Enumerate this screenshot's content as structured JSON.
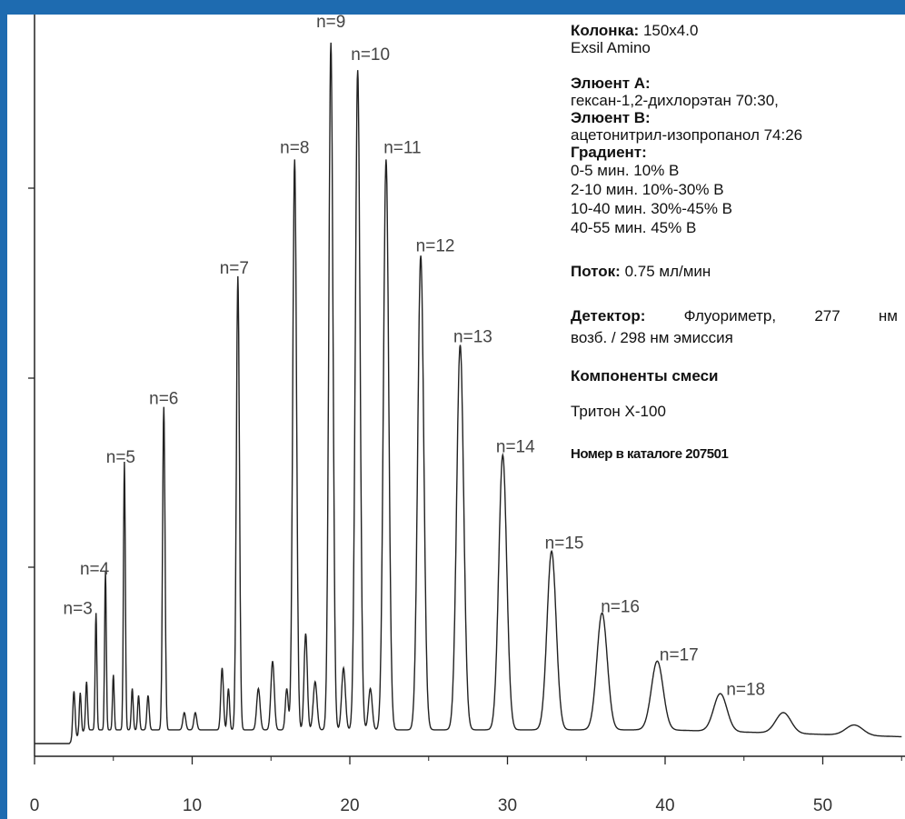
{
  "chart_data": {
    "type": "line",
    "x_axis": {
      "ticks": [
        0,
        10,
        20,
        30,
        40,
        50
      ],
      "range": [
        0,
        55
      ]
    },
    "y_axis": {
      "labels": "none",
      "range": [
        0,
        1
      ]
    },
    "baseline": 0.02,
    "peaks": [
      {
        "label": "n=3",
        "x": 3.9,
        "y": 0.17,
        "w": 0.09
      },
      {
        "label": "n=4",
        "x": 4.5,
        "y": 0.23,
        "w": 0.09
      },
      {
        "label": "n=5",
        "x": 5.7,
        "y": 0.39,
        "w": 0.1
      },
      {
        "label": "n=6",
        "x": 8.2,
        "y": 0.47,
        "w": 0.13
      },
      {
        "label": "n=7",
        "x": 12.9,
        "y": 0.66,
        "w": 0.16
      },
      {
        "label": "n=8",
        "x": 16.5,
        "y": 0.83,
        "w": 0.2
      },
      {
        "label": "n=9",
        "x": 18.8,
        "y": 1.0,
        "w": 0.22
      },
      {
        "label": "n=10",
        "x": 20.5,
        "y": 0.96,
        "w": 0.25
      },
      {
        "label": "n=11",
        "x": 22.3,
        "y": 0.83,
        "w": 0.28
      },
      {
        "label": "n=12",
        "x": 24.5,
        "y": 0.69,
        "w": 0.32
      },
      {
        "label": "n=13",
        "x": 27.0,
        "y": 0.56,
        "w": 0.37
      },
      {
        "label": "n=14",
        "x": 29.7,
        "y": 0.4,
        "w": 0.42
      },
      {
        "label": "n=15",
        "x": 32.8,
        "y": 0.26,
        "w": 0.48
      },
      {
        "label": "n=16",
        "x": 36.0,
        "y": 0.17,
        "w": 0.55
      },
      {
        "label": "n=17",
        "x": 39.5,
        "y": 0.1,
        "w": 0.62
      },
      {
        "label": "n=18",
        "x": 43.5,
        "y": 0.055,
        "w": 0.7
      },
      {
        "label": "",
        "x": 47.5,
        "y": 0.03,
        "w": 0.8
      },
      {
        "label": "",
        "x": 52.0,
        "y": 0.015,
        "w": 0.9
      }
    ],
    "minor_peaks": [
      {
        "x": 2.5,
        "y": 0.07,
        "w": 0.12
      },
      {
        "x": 2.9,
        "y": 0.06,
        "w": 0.1
      },
      {
        "x": 3.3,
        "y": 0.07,
        "w": 0.1
      },
      {
        "x": 5.0,
        "y": 0.08,
        "w": 0.09
      },
      {
        "x": 6.2,
        "y": 0.06,
        "w": 0.1
      },
      {
        "x": 6.6,
        "y": 0.05,
        "w": 0.1
      },
      {
        "x": 7.2,
        "y": 0.05,
        "w": 0.12
      },
      {
        "x": 9.5,
        "y": 0.025,
        "w": 0.15
      },
      {
        "x": 10.2,
        "y": 0.025,
        "w": 0.15
      },
      {
        "x": 11.9,
        "y": 0.09,
        "w": 0.14
      },
      {
        "x": 12.3,
        "y": 0.06,
        "w": 0.12
      },
      {
        "x": 14.2,
        "y": 0.06,
        "w": 0.18
      },
      {
        "x": 15.1,
        "y": 0.1,
        "w": 0.18
      },
      {
        "x": 16.0,
        "y": 0.06,
        "w": 0.15
      },
      {
        "x": 17.2,
        "y": 0.14,
        "w": 0.17
      },
      {
        "x": 17.8,
        "y": 0.07,
        "w": 0.2
      },
      {
        "x": 19.6,
        "y": 0.09,
        "w": 0.2
      },
      {
        "x": 21.3,
        "y": 0.06,
        "w": 0.2
      }
    ]
  },
  "info": {
    "column_label": "Колонка:",
    "column_value": "150x4.0",
    "column_name": "Exsil Amino",
    "eluent_a_label": "Элюент А:",
    "eluent_a_value": "гексан-1,2-дихлорэтан 70:30,",
    "eluent_b_label": "Элюент В:",
    "eluent_b_value": "ацетонитрил-изопропанол 74:26",
    "gradient_label": "Градиент:",
    "gradient_steps": [
      "0-5 мин. 10% В",
      "2-10 мин. 10%-30% В",
      "10-40 мин. 30%-45% В",
      "40-55 мин. 45% В"
    ],
    "flow_label": "Поток:",
    "flow_value": "0.75 мл/мин",
    "detector_label": "Детектор:",
    "detector_value_1": "Флуориметр, 277 нм",
    "detector_value_2": "возб. / 298 нм эмиссия",
    "components_label": "Компоненты смеси",
    "components_value": "Тритон Х-100",
    "catalog": "Номер в каталоге 207501"
  },
  "colors": {
    "frame": "#1e6bb0",
    "trace": "#222222"
  }
}
